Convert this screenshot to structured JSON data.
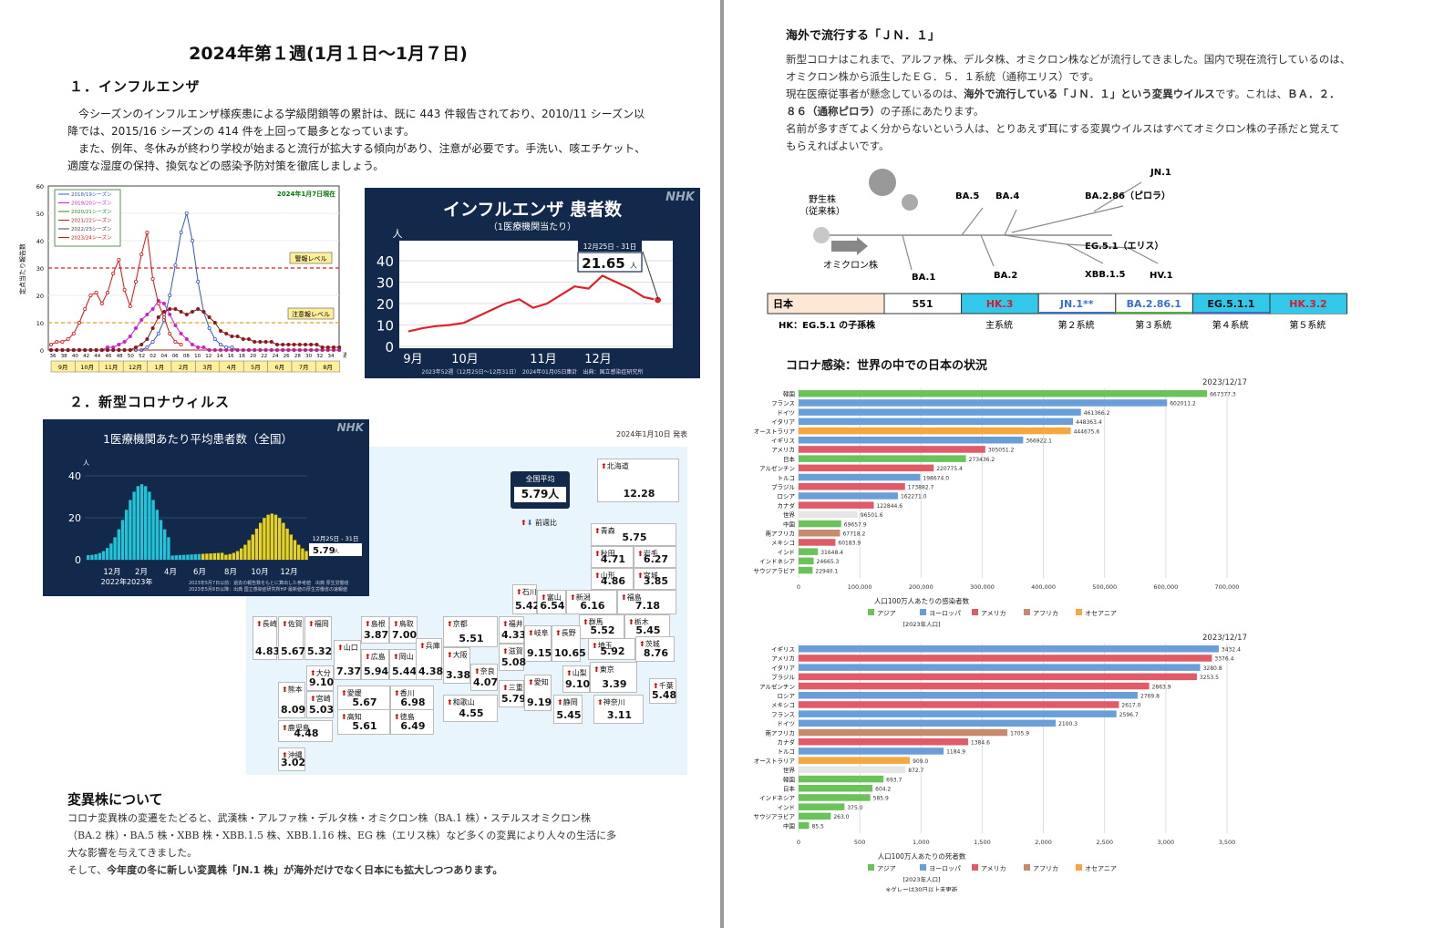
{
  "left": {
    "title": "2024年第１週(1月１日～1月７日)",
    "sec1_heading": "１．インフルエンザ",
    "sec1_text": [
      "　今シーズンのインフルエンザ様疾患による学級閉鎖等の累計は、既に 443 件報告されており、2010/11 シーズン以",
      "降では、2015/16 シーズンの 414 件を上回って最多となっています。",
      "　また、例年、冬休みが終わり学校が始まると流行が拡大する傾向があり、注意が必要です。手洗い、咳エチケット、",
      "適度な湿度の保持、換気などの感染予防対策を徹底しましょう。"
    ],
    "sec2_heading": "２．新型コロナウィルス",
    "variant_heading": "変異株について",
    "variant_text": [
      "コロナ変異株の変遷をたどると、武漢株・アルファ株・デルタ株・オミクロン株（BA.1 株）・ステルスオミクロン株",
      "（BA.2 株）・BA.5 株・XBB 株・XBB.1.5 株、XBB.1.16 株、EG 株（エリス株）など多くの変異により人々の生活に多",
      "大な影響を与えてきました。"
    ],
    "variant_last_pre": "そして、",
    "variant_last_bold": "今年度の冬に新しい変異株「JN.1 株」が海外だけでなく日本にも拡大しつつあります。"
  },
  "flu_chart": {
    "asof": "2024年1月7日現在",
    "ylabel": "定点当たり報告数",
    "yticks": [
      "60",
      "50",
      "40",
      "30",
      "20",
      "10",
      "0"
    ],
    "legend": [
      "2018/19シーズン",
      "2019/20シーズン",
      "2020/21シーズン",
      "2021/22シーズン",
      "2022/23シーズン",
      "2023/24シーズン"
    ],
    "warn_label": "警報レベル",
    "caution_label": "注意報レベル",
    "week_ticks": [
      "36",
      "38",
      "40",
      "42",
      "44",
      "46",
      "48",
      "50",
      "52",
      "02",
      "04",
      "06",
      "08",
      "10",
      "12",
      "14",
      "16",
      "18",
      "20",
      "22",
      "24",
      "26",
      "28",
      "30",
      "32",
      "34"
    ],
    "week_unit": "週",
    "months": [
      "9月",
      "10月",
      "11月",
      "12月",
      "1月",
      "2月",
      "3月",
      "4月",
      "5月",
      "6月",
      "7月",
      "8月"
    ]
  },
  "nhk_flu": {
    "logo": "NHK",
    "title": "インフルエンザ 患者数",
    "subtitle": "（1医療機関当たり）",
    "unit": "人",
    "yticks": [
      "40",
      "30",
      "20",
      "10",
      "0"
    ],
    "xticks": [
      "9月",
      "10月",
      "11月",
      "12月"
    ],
    "callout_period": "12月25日 - 31日",
    "callout_value": "21.65",
    "callout_unit": "人",
    "footer": "2023年52週（12月25日～12月31日）　2024年01月05日集計　出典：国立感染症研究所"
  },
  "nhk_covid": {
    "logo": "NHK",
    "title": "1医療機関あたり平均患者数（全国）",
    "unit": "人",
    "yticks": [
      "40",
      "20",
      "0"
    ],
    "xticks": [
      "12月",
      "2月",
      "4月",
      "6月",
      "8月",
      "10月",
      "12月"
    ],
    "years": "2022年2023年",
    "callout_period": "12月25日 - 31日",
    "callout_value": "5.79",
    "callout_unit": "人",
    "footer1": "2023年5月7日以前：過去の報告数をもとに算出した参考値　出典 厚生労働省",
    "footer2": "2023年5月8日以降：出典 国立感染症研究所HP 最新値の厚生労働省の速報値"
  },
  "japan_map": {
    "date": "2024年1月10日 発表",
    "national_label": "全国平均",
    "national_value": "5.79人",
    "compare_label": "前週比",
    "prefs": [
      {
        "n": "北海道",
        "v": "12.28"
      },
      {
        "n": "青森",
        "v": "5.75"
      },
      {
        "n": "秋田",
        "v": "4.71"
      },
      {
        "n": "岩手",
        "v": "6.27"
      },
      {
        "n": "山形",
        "v": "4.86"
      },
      {
        "n": "宮城",
        "v": "3.85"
      },
      {
        "n": "石川",
        "v": "5.42"
      },
      {
        "n": "富山",
        "v": "6.54"
      },
      {
        "n": "新潟",
        "v": "6.16"
      },
      {
        "n": "福島",
        "v": "7.18"
      },
      {
        "n": "群馬",
        "v": "5.52"
      },
      {
        "n": "栃木",
        "v": "5.45"
      },
      {
        "n": "長崎",
        "v": "4.83"
      },
      {
        "n": "佐賀",
        "v": "5.67"
      },
      {
        "n": "福岡",
        "v": "5.32"
      },
      {
        "n": "島根",
        "v": "3.87"
      },
      {
        "n": "鳥取",
        "v": "7.00"
      },
      {
        "n": "山口",
        "v": "7.37"
      },
      {
        "n": "広島",
        "v": "5.94"
      },
      {
        "n": "岡山",
        "v": "5.44"
      },
      {
        "n": "兵庫",
        "v": "4.38"
      },
      {
        "n": "京都",
        "v": "5.51"
      },
      {
        "n": "福井",
        "v": "4.33"
      },
      {
        "n": "岐阜",
        "v": "9.15"
      },
      {
        "n": "長野",
        "v": "10.65"
      },
      {
        "n": "埼玉",
        "v": "5.92"
      },
      {
        "n": "茨城",
        "v": "8.76"
      },
      {
        "n": "滋賀",
        "v": "5.08"
      },
      {
        "n": "大阪",
        "v": "3.38"
      },
      {
        "n": "奈良",
        "v": "4.07"
      },
      {
        "n": "山梨",
        "v": "9.10"
      },
      {
        "n": "東京",
        "v": "3.39"
      },
      {
        "n": "千葉",
        "v": "5.48"
      },
      {
        "n": "大分",
        "v": "9.10"
      },
      {
        "n": "熊本",
        "v": "8.09"
      },
      {
        "n": "宮崎",
        "v": "5.03"
      },
      {
        "n": "鹿児島",
        "v": "4.48"
      },
      {
        "n": "沖縄",
        "v": "3.02"
      },
      {
        "n": "愛媛",
        "v": "5.67"
      },
      {
        "n": "香川",
        "v": "6.98"
      },
      {
        "n": "高知",
        "v": "5.61"
      },
      {
        "n": "徳島",
        "v": "6.49"
      },
      {
        "n": "和歌山",
        "v": "4.55"
      },
      {
        "n": "三重",
        "v": "5.79"
      },
      {
        "n": "愛知",
        "v": "9.19"
      },
      {
        "n": "静岡",
        "v": "5.45"
      },
      {
        "n": "神奈川",
        "v": "3.11"
      }
    ]
  },
  "right": {
    "jn1_heading": "海外で流行する「ＪＮ．１」",
    "jn1_line1": "新型コロナはこれまで、アルファ株、デルタ株、オミクロン株などが流行してきました。国内で現在流行しているのは、",
    "jn1_line2": "オミクロン株から派生したＥＧ．５．１系統（通称エリス）です。",
    "jn1_line3_pre": "現在医療従事者が懸念しているのは、",
    "jn1_line3_bold": "海外で流行している「ＪＮ．１」という変異ウイルス",
    "jn1_line3_post": "です。これは、",
    "jn1_line3_bold2": "ＢＡ．２．",
    "jn1_line4_bold": "８６（通称ピロラ）",
    "jn1_line4_post": "の子孫にあたります。",
    "jn1_line5": "名前が多すぎてよく分からないという人は、とりあえず耳にする変異ウイルスはすべてオミクロン株の子孫だと覚えて",
    "jn1_line6": "もらえればよいです。",
    "japan_heading": "コロナ感染：世界の中での日本の状況"
  },
  "lineage": {
    "wild": "野生株\n（従来株）",
    "omicron": "オミクロン株",
    "labels": [
      "BA.1",
      "BA.2",
      "BA.5",
      "BA.4",
      "BA.2.86（ピロラ）",
      "JN.1",
      "EG.5.1（エリス）",
      "XBB.1.5",
      "HV.1"
    ],
    "table_country": "日本",
    "table_cells": [
      "551",
      "HK.3",
      "JN.1**",
      "BA.2.86.1",
      "EG.5.1.1",
      "HK.3.2"
    ],
    "table_note": "HK：EG.5.1 の子孫株",
    "table_system": [
      "主系統",
      "第２系統",
      "第３系統",
      "第４系統",
      "第５系統"
    ]
  },
  "chart_data": [
    {
      "type": "bar",
      "orientation": "horizontal",
      "date": "2023/12/17",
      "xlabel": "人口100万人あたりの感染者数",
      "xnote": "[2023年人口]",
      "xlim": [
        0,
        700000
      ],
      "xticks": [
        "0",
        "100,000",
        "200,000",
        "300,000",
        "400,000",
        "500,000",
        "600,000",
        "700,000"
      ],
      "categories": [
        "韓国",
        "フランス",
        "ドイツ",
        "イタリア",
        "オーストラリア",
        "イギリス",
        "アメリカ",
        "日本",
        "アルゼンチン",
        "トルコ",
        "ブラジル",
        "ロシア",
        "カナダ",
        "世界",
        "中国",
        "南アフリカ",
        "メキシコ",
        "インド",
        "インドネシア",
        "サウジアラビア"
      ],
      "values": [
        667377.3,
        602011.2,
        461366.2,
        448363.4,
        444675.6,
        366922.1,
        305051.2,
        273436.2,
        220775.4,
        198674.0,
        173882.7,
        162271.0,
        122844.6,
        96501.6,
        69657.9,
        67718.2,
        60183.9,
        31648.4,
        24665.3,
        22940.1
      ],
      "value_labels": [
        "667377.3",
        "602011.2",
        "461366.2",
        "448363.4",
        "444675.6",
        "366922.1",
        "305051.2",
        "273436.2",
        "220775.4",
        "198674.0",
        "173882.7",
        "162271.0",
        "122844.6",
        "96501.6",
        "69657.9",
        "67718.2",
        "60183.9",
        "31648.4",
        "24665.3",
        "22940.1"
      ],
      "regions": [
        "asia",
        "europe",
        "europe",
        "europe",
        "oceania",
        "europe",
        "america",
        "asia",
        "america",
        "europe",
        "america",
        "europe",
        "america",
        "world",
        "asia",
        "africa",
        "america",
        "asia",
        "asia",
        "asia"
      ],
      "legend": [
        "アジア",
        "ヨーロッパ",
        "アメリカ",
        "アフリカ",
        "オセアニア"
      ],
      "colors": {
        "asia": "#6cc25a",
        "europe": "#6a9ed8",
        "america": "#e05a68",
        "africa": "#c88a6e",
        "oceania": "#f5a740",
        "world": "#e6e6e6"
      }
    },
    {
      "type": "bar",
      "orientation": "horizontal",
      "date": "2023/12/17",
      "xlabel": "人口100万人あたりの死者数",
      "xnote": "[2023年人口]",
      "footnote": "※グレーは30日以上未更新",
      "xlim": [
        0,
        3500
      ],
      "xticks": [
        "0",
        "500",
        "1,000",
        "1,500",
        "2,000",
        "2,500",
        "3,000",
        "3,500"
      ],
      "categories": [
        "イギリス",
        "アメリカ",
        "イタリア",
        "ブラジル",
        "アルゼンチン",
        "ロシア",
        "メキシコ",
        "フランス",
        "ドイツ",
        "南アフリカ",
        "カナダ",
        "トルコ",
        "オーストラリア",
        "世界",
        "韓国",
        "日本",
        "インドネシア",
        "インド",
        "サウジアラビア",
        "中国"
      ],
      "values": [
        3432.4,
        3376.4,
        3280.8,
        3253.5,
        2863.9,
        2769.8,
        2617.0,
        2596.7,
        2100.3,
        1705.9,
        1384.6,
        1184.9,
        909.0,
        872.7,
        693.7,
        604.2,
        585.9,
        375.0,
        263.0,
        85.5
      ],
      "value_labels": [
        "3432.4",
        "3376.4",
        "3280.8",
        "3253.5",
        "2863.9",
        "2769.8",
        "2617.0",
        "2596.7",
        "2100.3",
        "1705.9",
        "1384.6",
        "1184.9",
        "909.0",
        "872.7",
        "693.7",
        "604.2",
        "585.9",
        "375.0",
        "263.0",
        "85.5"
      ],
      "regions": [
        "europe",
        "america",
        "europe",
        "america",
        "america",
        "europe",
        "america",
        "europe",
        "europe",
        "africa",
        "america",
        "europe",
        "oceania",
        "world",
        "asia",
        "asia",
        "asia",
        "asia",
        "asia",
        "asia"
      ],
      "legend": [
        "アジア",
        "ヨーロッパ",
        "アメリカ",
        "アフリカ",
        "オセアニア"
      ],
      "colors": {
        "asia": "#6cc25a",
        "europe": "#6a9ed8",
        "america": "#e05a68",
        "africa": "#c88a6e",
        "oceania": "#f5a740",
        "world": "#e6e6e6"
      }
    }
  ]
}
